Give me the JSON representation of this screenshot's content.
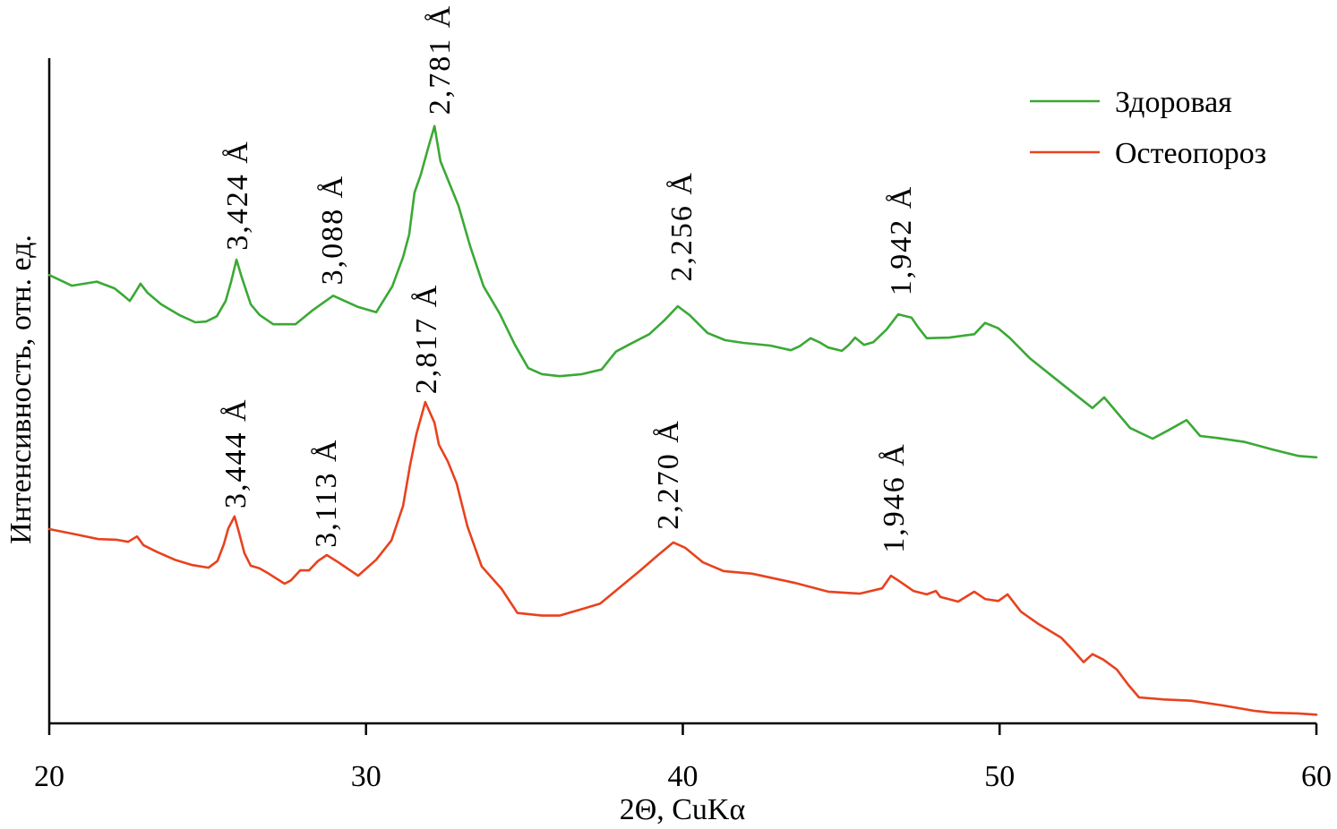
{
  "chart_data": {
    "type": "line",
    "title": "",
    "xlabel": "2Θ, CuKα",
    "ylabel": "Интенсивность, отн. ед.",
    "xlim": [
      20,
      60
    ],
    "ylim": [
      0,
      100
    ],
    "x_ticks": [
      20,
      30,
      40,
      50,
      60
    ],
    "y_ticks": [],
    "grid": false,
    "legend_position": "top-right",
    "series": [
      {
        "name": "Здоровая",
        "color": "#3aa935",
        "points": [
          [
            20.0,
            67.4
          ],
          [
            20.71,
            65.8
          ],
          [
            21.5,
            66.4
          ],
          [
            22.06,
            65.4
          ],
          [
            22.35,
            64.3
          ],
          [
            22.54,
            63.5
          ],
          [
            22.69,
            64.6
          ],
          [
            22.88,
            66.1
          ],
          [
            23.11,
            64.7
          ],
          [
            23.53,
            63.0
          ],
          [
            24.1,
            61.4
          ],
          [
            24.61,
            60.3
          ],
          [
            24.95,
            60.4
          ],
          [
            25.29,
            61.2
          ],
          [
            25.57,
            63.5
          ],
          [
            25.74,
            66.4
          ],
          [
            25.91,
            69.7
          ],
          [
            26.08,
            67.0
          ],
          [
            26.36,
            63.0
          ],
          [
            26.64,
            61.4
          ],
          [
            27.07,
            60.0
          ],
          [
            27.77,
            60.0
          ],
          [
            28.34,
            62.2
          ],
          [
            28.96,
            64.3
          ],
          [
            29.33,
            63.5
          ],
          [
            29.75,
            62.6
          ],
          [
            30.32,
            61.8
          ],
          [
            30.83,
            65.7
          ],
          [
            31.17,
            70.1
          ],
          [
            31.36,
            73.5
          ],
          [
            31.53,
            79.8
          ],
          [
            31.73,
            82.5
          ],
          [
            31.96,
            86.5
          ],
          [
            32.16,
            89.8
          ],
          [
            32.35,
            84.5
          ],
          [
            32.58,
            81.8
          ],
          [
            32.92,
            77.8
          ],
          [
            33.29,
            71.7
          ],
          [
            33.71,
            65.7
          ],
          [
            34.22,
            61.6
          ],
          [
            34.7,
            56.9
          ],
          [
            35.12,
            53.4
          ],
          [
            35.55,
            52.5
          ],
          [
            36.11,
            52.2
          ],
          [
            36.82,
            52.5
          ],
          [
            37.44,
            53.2
          ],
          [
            37.67,
            54.6
          ],
          [
            37.89,
            55.9
          ],
          [
            38.37,
            57.1
          ],
          [
            38.94,
            58.5
          ],
          [
            39.42,
            60.6
          ],
          [
            39.84,
            62.7
          ],
          [
            40.21,
            61.4
          ],
          [
            40.78,
            58.7
          ],
          [
            41.34,
            57.6
          ],
          [
            41.91,
            57.2
          ],
          [
            42.76,
            56.8
          ],
          [
            43.41,
            56.1
          ],
          [
            43.69,
            56.7
          ],
          [
            44.03,
            57.9
          ],
          [
            44.31,
            57.3
          ],
          [
            44.59,
            56.5
          ],
          [
            45.02,
            56.0
          ],
          [
            45.24,
            56.9
          ],
          [
            45.44,
            58.0
          ],
          [
            45.72,
            56.9
          ],
          [
            46.01,
            57.3
          ],
          [
            46.43,
            59.2
          ],
          [
            46.8,
            61.5
          ],
          [
            47.22,
            61.0
          ],
          [
            47.42,
            59.6
          ],
          [
            47.7,
            57.9
          ],
          [
            48.41,
            58.0
          ],
          [
            49.2,
            58.5
          ],
          [
            49.54,
            60.2
          ],
          [
            49.96,
            59.4
          ],
          [
            50.33,
            57.9
          ],
          [
            50.95,
            54.9
          ],
          [
            51.66,
            52.2
          ],
          [
            52.37,
            49.5
          ],
          [
            52.93,
            47.4
          ],
          [
            53.3,
            49.0
          ],
          [
            53.64,
            47.1
          ],
          [
            54.12,
            44.4
          ],
          [
            54.83,
            42.8
          ],
          [
            55.34,
            44.1
          ],
          [
            55.9,
            45.6
          ],
          [
            56.33,
            43.2
          ],
          [
            56.89,
            42.9
          ],
          [
            57.74,
            42.3
          ],
          [
            58.59,
            41.2
          ],
          [
            59.43,
            40.2
          ],
          [
            60.0,
            40.0
          ]
        ]
      },
      {
        "name": "Остеопороз",
        "color": "#e8421e",
        "points": [
          [
            20.0,
            29.2
          ],
          [
            20.85,
            28.4
          ],
          [
            21.55,
            27.7
          ],
          [
            22.12,
            27.6
          ],
          [
            22.49,
            27.3
          ],
          [
            22.77,
            28.1
          ],
          [
            22.97,
            26.8
          ],
          [
            23.39,
            25.8
          ],
          [
            23.96,
            24.6
          ],
          [
            24.52,
            23.8
          ],
          [
            25.03,
            23.4
          ],
          [
            25.31,
            24.4
          ],
          [
            25.51,
            26.9
          ],
          [
            25.65,
            29.3
          ],
          [
            25.85,
            31.1
          ],
          [
            25.99,
            28.7
          ],
          [
            26.16,
            25.6
          ],
          [
            26.36,
            23.7
          ],
          [
            26.64,
            23.3
          ],
          [
            26.93,
            22.5
          ],
          [
            27.43,
            21.0
          ],
          [
            27.63,
            21.5
          ],
          [
            27.92,
            23.0
          ],
          [
            28.2,
            23.0
          ],
          [
            28.48,
            24.4
          ],
          [
            28.76,
            25.3
          ],
          [
            29.13,
            24.2
          ],
          [
            29.75,
            22.2
          ],
          [
            30.32,
            24.6
          ],
          [
            30.8,
            27.5
          ],
          [
            31.17,
            32.7
          ],
          [
            31.39,
            38.8
          ],
          [
            31.59,
            43.5
          ],
          [
            31.87,
            48.3
          ],
          [
            32.16,
            45.2
          ],
          [
            32.3,
            41.9
          ],
          [
            32.58,
            39.4
          ],
          [
            32.86,
            36.1
          ],
          [
            33.2,
            29.6
          ],
          [
            33.65,
            23.6
          ],
          [
            34.28,
            20.2
          ],
          [
            34.78,
            16.6
          ],
          [
            35.55,
            16.2
          ],
          [
            36.11,
            16.2
          ],
          [
            36.68,
            17.0
          ],
          [
            37.39,
            18.0
          ],
          [
            37.95,
            20.2
          ],
          [
            38.66,
            23.0
          ],
          [
            39.22,
            25.3
          ],
          [
            39.7,
            27.2
          ],
          [
            40.07,
            26.4
          ],
          [
            40.64,
            24.2
          ],
          [
            41.29,
            22.9
          ],
          [
            42.19,
            22.5
          ],
          [
            43.55,
            21.1
          ],
          [
            44.59,
            19.8
          ],
          [
            45.58,
            19.5
          ],
          [
            46.29,
            20.3
          ],
          [
            46.57,
            22.2
          ],
          [
            46.8,
            21.5
          ],
          [
            47.28,
            19.9
          ],
          [
            47.7,
            19.4
          ],
          [
            47.99,
            19.9
          ],
          [
            48.13,
            19.0
          ],
          [
            48.69,
            18.3
          ],
          [
            49.2,
            19.8
          ],
          [
            49.54,
            18.7
          ],
          [
            49.96,
            18.4
          ],
          [
            50.25,
            19.4
          ],
          [
            50.67,
            16.8
          ],
          [
            51.24,
            14.9
          ],
          [
            51.94,
            12.9
          ],
          [
            52.28,
            11.2
          ],
          [
            52.65,
            9.2
          ],
          [
            52.93,
            10.4
          ],
          [
            53.27,
            9.6
          ],
          [
            53.7,
            8.1
          ],
          [
            54.06,
            5.8
          ],
          [
            54.4,
            3.9
          ],
          [
            55.19,
            3.6
          ],
          [
            56.04,
            3.4
          ],
          [
            57.03,
            2.7
          ],
          [
            58.02,
            1.9
          ],
          [
            58.59,
            1.6
          ],
          [
            59.43,
            1.5
          ],
          [
            60.0,
            1.3
          ]
        ]
      }
    ],
    "annotations": [
      {
        "series": "Здоровая",
        "text": "3,424 Å",
        "x": 25.91,
        "y": 71.1
      },
      {
        "series": "Здоровая",
        "text": "3,088 Å",
        "x": 28.9,
        "y": 65.9
      },
      {
        "series": "Здоровая",
        "text": "2,781 Å",
        "x": 32.3,
        "y": 91.5
      },
      {
        "series": "Здоровая",
        "text": "2,256 Å",
        "x": 39.93,
        "y": 66.4
      },
      {
        "series": "Здоровая",
        "text": "1,942 Å",
        "x": 46.86,
        "y": 64.3
      },
      {
        "series": "Остеопороз",
        "text": "3,444 Å",
        "x": 25.85,
        "y": 32.3
      },
      {
        "series": "Остеопороз",
        "text": "3,113 Å",
        "x": 28.71,
        "y": 26.4
      },
      {
        "series": "Остеопороз",
        "text": "2,817 Å",
        "x": 31.87,
        "y": 49.5
      },
      {
        "series": "Остеопороз",
        "text": "2,270 Å",
        "x": 39.5,
        "y": 29.1
      },
      {
        "series": "Остеопороз",
        "text": "1,946 Å",
        "x": 46.63,
        "y": 25.6
      }
    ]
  }
}
